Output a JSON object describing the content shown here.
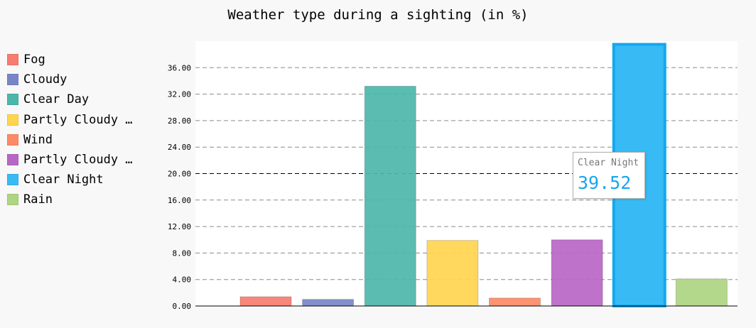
{
  "chart_data": {
    "type": "bar",
    "title": "Weather type during a sighting (in %)",
    "xlabel": "",
    "ylabel": "",
    "ylim": [
      0,
      40
    ],
    "yticks": [
      "0.00",
      "4.00",
      "8.00",
      "12.00",
      "16.00",
      "20.00",
      "24.00",
      "28.00",
      "32.00",
      "36.00"
    ],
    "grid": true,
    "legend_position": "left",
    "series": [
      {
        "name": "Fog",
        "legend_label": "Fog",
        "value": 1.4,
        "color": "#f87c6f"
      },
      {
        "name": "Cloudy",
        "legend_label": "Cloudy",
        "value": 1.0,
        "color": "#7a85c8"
      },
      {
        "name": "Clear Day",
        "legend_label": "Clear Day",
        "value": 33.2,
        "color": "#4db6aa"
      },
      {
        "name": "Partly Cloudy Day",
        "legend_label": "Partly Cloudy …",
        "value": 9.9,
        "color": "#ffd54f"
      },
      {
        "name": "Wind",
        "legend_label": "Wind",
        "value": 1.2,
        "color": "#fe8a65"
      },
      {
        "name": "Partly Cloudy Night",
        "legend_label": "Partly Cloudy …",
        "value": 10.0,
        "color": "#b866c6"
      },
      {
        "name": "Clear Night",
        "legend_label": "Clear Night",
        "value": 39.52,
        "color": "#38bbf5"
      },
      {
        "name": "Rain",
        "legend_label": "Rain",
        "value": 4.1,
        "color": "#aed581"
      }
    ],
    "highlighted": "Clear Night"
  },
  "tooltip": {
    "label": "Clear Night",
    "value": "39.52"
  }
}
